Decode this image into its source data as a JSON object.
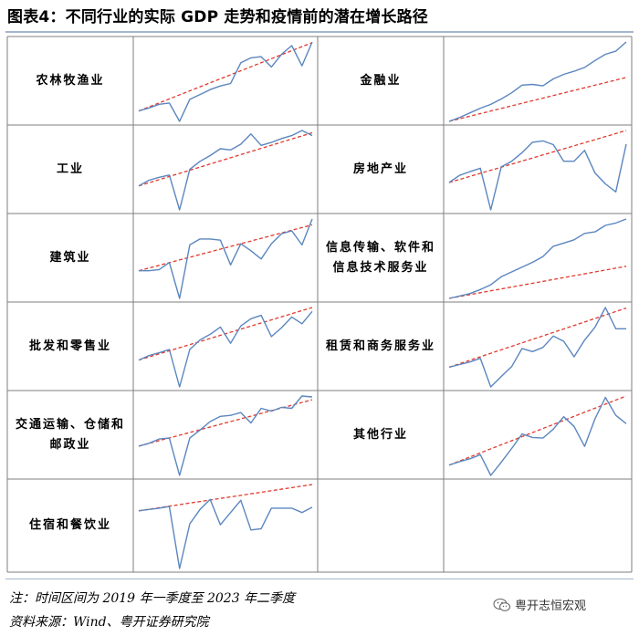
{
  "title": "图表4：不同行业的实际 GDP 走势和疫情前的潜在增长路径",
  "note": "注：时间区间为 2019 年一季度至 2023 年二季度",
  "source": "资料来源：Wind、粤开证券研究院",
  "watermark": "粤开志恒宏观",
  "colors": {
    "series": "#5b86bf",
    "trend": "#e03a2f",
    "grid": "#7f7f7f",
    "rule": "#a3b7cc"
  },
  "chart_data": [
    {
      "type": "line",
      "label": "农林牧渔业",
      "values": [
        0.13,
        0.18,
        0.24,
        0.26,
        -0.04,
        0.32,
        0.4,
        0.48,
        0.54,
        0.58,
        0.92,
        1.0,
        1.02,
        0.85,
        1.06,
        1.2,
        0.87,
        1.26
      ],
      "trend": [
        0.13,
        1.25
      ]
    },
    {
      "type": "line",
      "label": "金融业",
      "values": [
        0.05,
        0.1,
        0.16,
        0.22,
        0.27,
        0.34,
        0.42,
        0.52,
        0.53,
        0.51,
        0.6,
        0.66,
        0.7,
        0.75,
        0.84,
        0.92,
        0.96,
        1.08
      ],
      "trend": [
        0.05,
        0.62
      ]
    },
    {
      "type": "line",
      "label": "工业",
      "values": [
        0.17,
        0.27,
        0.32,
        0.36,
        -0.25,
        0.46,
        0.6,
        0.7,
        0.82,
        0.8,
        0.9,
        1.08,
        0.88,
        0.93,
        1.0,
        1.05,
        1.14,
        1.05
      ],
      "trend": [
        0.17,
        1.1
      ]
    },
    {
      "type": "line",
      "label": "房地产业",
      "values": [
        0.25,
        0.4,
        0.48,
        0.55,
        -0.33,
        0.58,
        0.7,
        0.88,
        1.1,
        1.13,
        1.05,
        0.7,
        0.7,
        0.93,
        0.45,
        0.22,
        0.05,
        1.06
      ],
      "trend": [
        0.25,
        1.35
      ]
    },
    {
      "type": "line",
      "label": "建筑业",
      "values": [
        0.12,
        0.12,
        0.14,
        0.26,
        -0.35,
        0.56,
        0.66,
        0.66,
        0.64,
        0.22,
        0.58,
        0.46,
        0.32,
        0.58,
        0.75,
        0.8,
        0.56,
        1.0
      ],
      "trend": [
        0.12,
        0.9
      ]
    },
    {
      "type": "line",
      "label": "信息传输、软件和信息技术服务业",
      "values": [
        0.03,
        0.06,
        0.09,
        0.14,
        0.2,
        0.3,
        0.36,
        0.42,
        0.48,
        0.55,
        0.68,
        0.72,
        0.76,
        0.84,
        0.86,
        0.94,
        0.97,
        1.02
      ],
      "trend": [
        0.03,
        0.43
      ]
    },
    {
      "type": "line",
      "label": "批发和零售业",
      "values": [
        0.13,
        0.21,
        0.26,
        0.32,
        -0.35,
        0.32,
        0.49,
        0.59,
        0.72,
        0.43,
        0.74,
        0.87,
        0.93,
        0.55,
        0.71,
        0.9,
        0.78,
        1.0
      ],
      "trend": [
        0.13,
        1.07
      ]
    },
    {
      "type": "line",
      "label": "租赁和商务服务业",
      "values": [
        0.1,
        0.15,
        0.2,
        0.27,
        -0.28,
        -0.08,
        0.11,
        0.46,
        0.4,
        0.48,
        0.7,
        0.6,
        0.3,
        0.62,
        0.87,
        1.25,
        0.84,
        0.84
      ],
      "trend": [
        0.1,
        1.24
      ]
    },
    {
      "type": "line",
      "label": "交通运输、仓储和邮政业",
      "values": [
        0.07,
        0.13,
        0.22,
        0.24,
        -0.55,
        0.24,
        0.41,
        0.59,
        0.7,
        0.72,
        0.78,
        0.56,
        0.87,
        0.81,
        0.89,
        0.87,
        1.13,
        1.11
      ],
      "trend": [
        0.07,
        1.05
      ]
    },
    {
      "type": "line",
      "label": "其他行业",
      "values": [
        0.1,
        0.15,
        0.19,
        0.25,
        -0.05,
        0.14,
        0.34,
        0.55,
        0.5,
        0.49,
        0.62,
        0.8,
        0.66,
        0.37,
        0.77,
        1.08,
        0.82,
        0.7
      ],
      "trend": [
        0.1,
        1.1
      ]
    },
    {
      "type": "line",
      "label": "住宿和餐饮业",
      "values": [
        0.4,
        0.43,
        0.46,
        0.5,
        -0.92,
        0.1,
        0.43,
        0.66,
        0.08,
        0.36,
        0.64,
        -0.04,
        -0.01,
        0.46,
        0.46,
        0.46,
        0.36,
        0.48
      ],
      "trend": [
        0.4,
        1.0
      ]
    }
  ]
}
